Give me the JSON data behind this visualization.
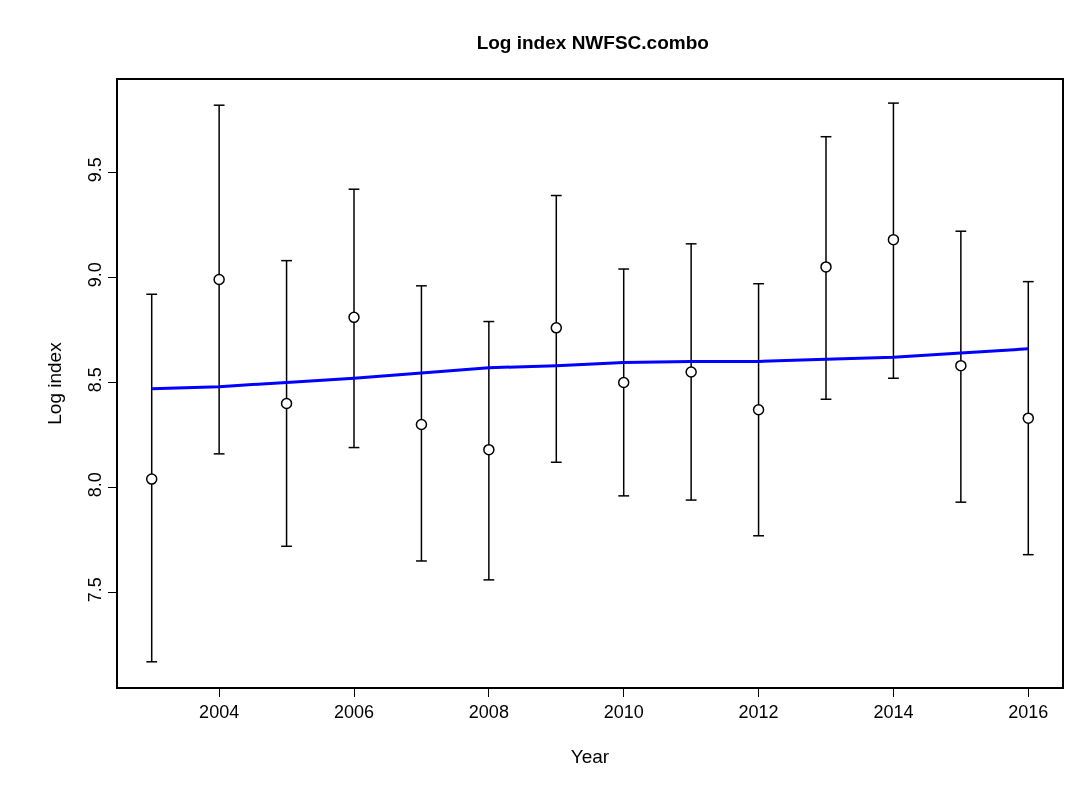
{
  "chart_data": {
    "type": "scatter",
    "title": "Log index NWFSC.combo",
    "xlabel": "Year",
    "ylabel": "Log index",
    "x": [
      2003,
      2004,
      2005,
      2006,
      2007,
      2008,
      2009,
      2010,
      2011,
      2012,
      2013,
      2014,
      2015,
      2016
    ],
    "series": [
      {
        "color": "#000000",
        "marker": "circle",
        "values": [
          8.04,
          8.99,
          8.4,
          8.81,
          8.3,
          8.18,
          8.76,
          8.5,
          8.55,
          8.37,
          9.05,
          9.18,
          8.58,
          8.33
        ],
        "errors": [
          [
            7.17,
            8.92
          ],
          [
            8.16,
            9.82
          ],
          [
            7.72,
            9.08
          ],
          [
            8.19,
            9.42
          ],
          [
            7.65,
            8.96
          ],
          [
            7.56,
            8.79
          ],
          [
            8.12,
            9.39
          ],
          [
            7.96,
            9.04
          ],
          [
            7.94,
            9.16
          ],
          [
            7.77,
            8.97
          ],
          [
            8.42,
            9.67
          ],
          [
            8.52,
            9.83
          ],
          [
            7.93,
            9.22
          ],
          [
            7.68,
            8.98
          ]
        ]
      },
      {
        "type": "line",
        "color": "#0000ff",
        "marker": "none",
        "values": [
          8.47,
          8.48,
          8.5,
          8.52,
          8.545,
          8.57,
          8.58,
          8.595,
          8.6,
          8.6,
          8.61,
          8.62,
          8.64,
          8.66
        ]
      }
    ],
    "xlim": [
      2002.5,
      2016.5
    ],
    "xticks": [
      2004,
      2006,
      2008,
      2010,
      2012,
      2014,
      2016
    ],
    "ylim": [
      7.05,
      9.94
    ],
    "yticks": [
      7.5,
      {
        "value": 8,
        "label": "8.0"
      },
      8.5,
      {
        "value": 9,
        "label": "9.0"
      },
      9.5
    ]
  }
}
